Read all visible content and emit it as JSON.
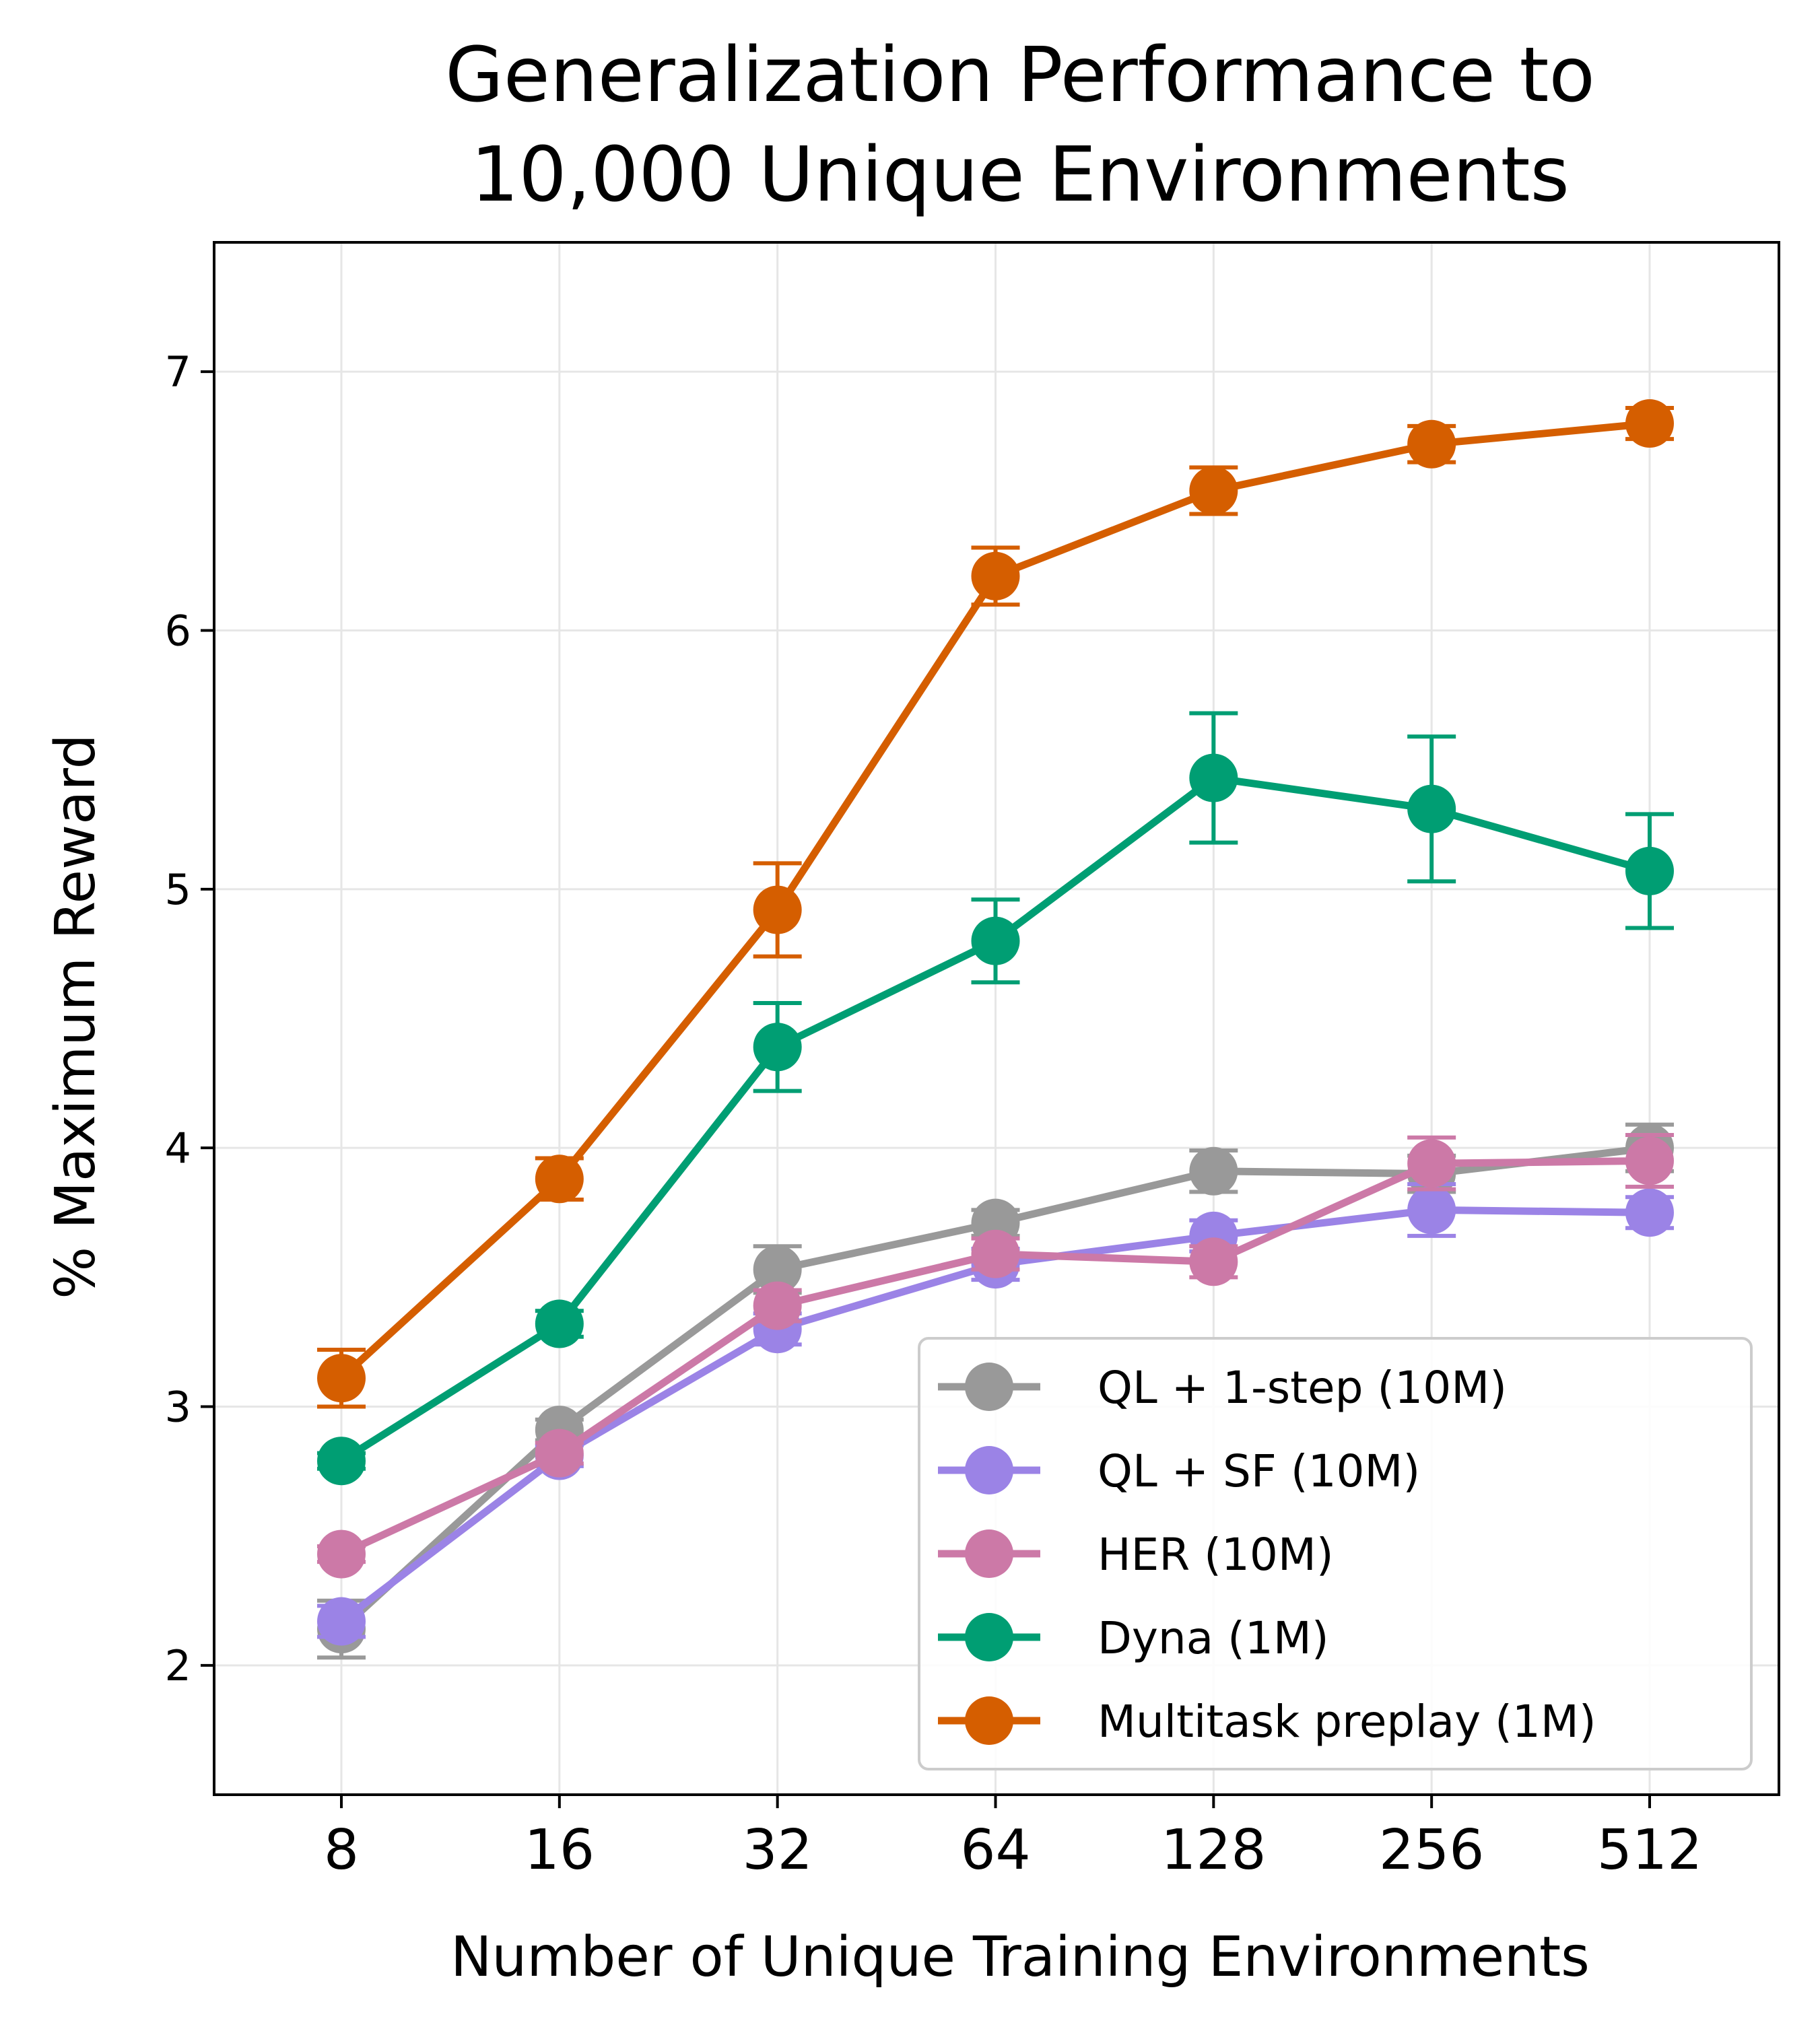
{
  "chart_data": {
    "type": "line",
    "title_lines": [
      "Generalization Performance to",
      "10,000 Unique Environments"
    ],
    "xlabel": "Number of Unique Training Environments",
    "ylabel": "% Maximum Reward",
    "categories": [
      "8",
      "16",
      "32",
      "64",
      "128",
      "256",
      "512"
    ],
    "yticks": [
      "2",
      "3",
      "4",
      "5",
      "6",
      "7"
    ],
    "ylim": [
      1.5,
      7.5
    ],
    "grid": true,
    "legend_position": "lower-right",
    "series": [
      {
        "name": "QL + 1-step (10M)",
        "color": "#999999",
        "values": [
          2.14,
          2.91,
          3.53,
          3.71,
          3.91,
          3.9,
          4.0
        ],
        "errors": [
          0.11,
          0.04,
          0.09,
          0.05,
          0.08,
          0.07,
          0.09
        ]
      },
      {
        "name": "QL + SF (10M)",
        "color": "#9b83e6",
        "values": [
          2.17,
          2.81,
          3.3,
          3.55,
          3.66,
          3.76,
          3.75
        ],
        "errors": [
          0.06,
          0.04,
          0.06,
          0.06,
          0.06,
          0.1,
          0.06
        ]
      },
      {
        "name": "HER (10M)",
        "color": "#cc79a7",
        "values": [
          2.43,
          2.82,
          3.39,
          3.59,
          3.56,
          3.94,
          3.95
        ],
        "errors": [
          0.03,
          0.04,
          0.06,
          0.06,
          0.06,
          0.1,
          0.1
        ]
      },
      {
        "name": "Dyna (1M)",
        "color": "#009e73",
        "values": [
          2.79,
          3.32,
          4.39,
          4.8,
          5.43,
          5.31,
          5.07
        ],
        "errors": [
          0.03,
          0.05,
          0.17,
          0.16,
          0.25,
          0.28,
          0.22
        ]
      },
      {
        "name": "Multitask preplay (1M)",
        "color": "#d55e00",
        "values": [
          3.11,
          3.88,
          4.92,
          6.21,
          6.54,
          6.72,
          6.8
        ],
        "errors": [
          0.11,
          0.08,
          0.18,
          0.11,
          0.09,
          0.07,
          0.06
        ]
      }
    ]
  }
}
